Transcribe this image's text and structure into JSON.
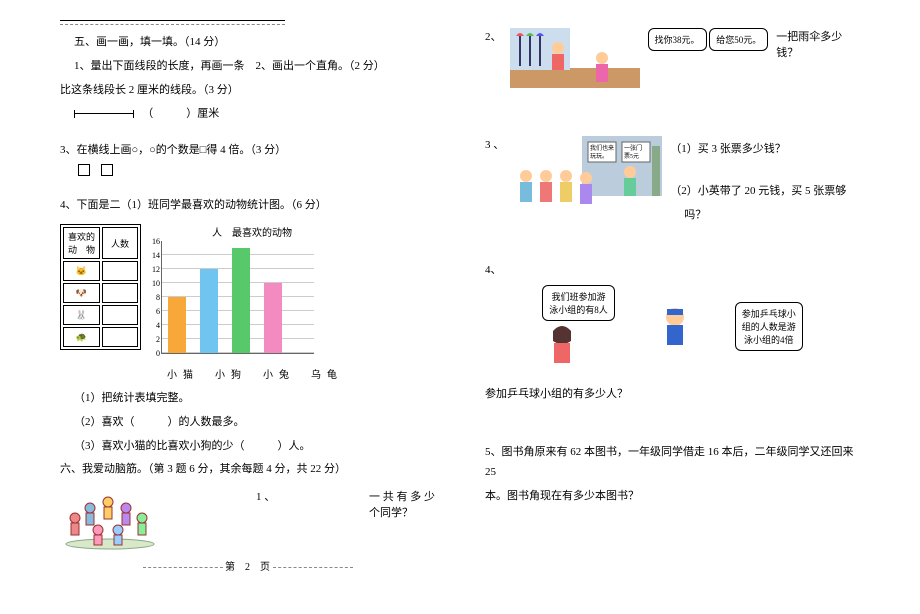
{
  "left": {
    "headerRule": true,
    "section5_title": "五、画一画，填一填。（14 分）",
    "q1_a": "1、量出下面线段的长度，再画一条",
    "q1_b": "2、画出一个直角。（2 分）",
    "q1_c": "比这条线段长 2 厘米的线段。（3 分）",
    "ruler_unit": "（　　　）厘米",
    "q3": "3、在横线上画○，○的个数是□得 4 倍。（3 分）",
    "q4": "4、下面是二（1）班同学最喜欢的动物统计图。（6 分）",
    "chart": {
      "title": "最喜欢的动物",
      "y_unit": "人",
      "y_max": 16,
      "y_step": 2,
      "categories": [
        "小猫",
        "小狗",
        "小兔",
        "乌龟"
      ],
      "values": [
        8,
        12,
        15,
        10
      ],
      "colors": [
        "#f7a838",
        "#6fc4f0",
        "#58c96b",
        "#f48bc0"
      ],
      "bg": "#ffffff"
    },
    "stats_table": {
      "row1": [
        "喜欢的",
        "人数"
      ],
      "row1a": "动　物",
      "animals": [
        "🐱",
        "🐶",
        "🐰",
        "🐢"
      ]
    },
    "q4_1": "（1）把统计表填完整。",
    "q4_2a": "（2）喜欢（　　　）的人数最多。",
    "q4_3": "（3）喜欢小猫的比喜欢小狗的少（　　　）人。",
    "section6_title": "六、我爱动脑筋。（第 3 题 6 分，其余每题 4 分，共 22 分）",
    "q6_1_num": "1 、",
    "q6_1_text": "一 共 有 多 少",
    "q6_1_text2": "个同学？",
    "footer": "第　2　页"
  },
  "right": {
    "q2_num": "2、",
    "q2_bubble1": "找你38元。",
    "q2_bubble2": "给您50元。",
    "q2_text": "一把雨伞多少钱？",
    "q3_num": "3 、",
    "q3_sign1": "我们也来\\n玩玩。",
    "q3_sign2": "一张门\\n票5元",
    "q3_1": "（1）买 3 张票多少钱？",
    "q3_2": "（2）小英带了 20 元钱，买 5 张票够",
    "q3_2b": "吗？",
    "q4_num": "4、",
    "q4_bubble1": "我们班参加游\\n泳小组的有8人",
    "q4_bubble2": "参加乒乓球小\\n组的人数是游\\n泳小组的4倍",
    "q4_text": "参加乒乓球小组的有多少人？",
    "q5": "5、图书角原来有 62 本图书，一年级同学借走 16 本后，二年级同学又还回来 25",
    "q5b": "本。图书角现在有多少本图书？"
  }
}
